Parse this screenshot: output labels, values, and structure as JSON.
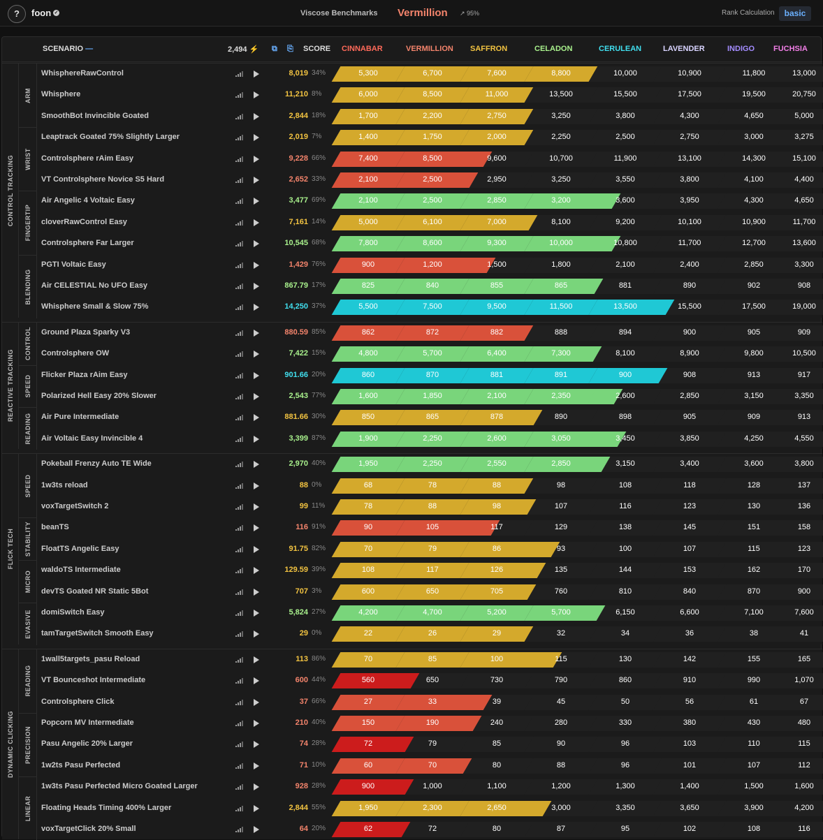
{
  "topbar": {
    "help": "?",
    "username": "foon",
    "benchmark": "Viscose Benchmarks",
    "rank": "Vermillion",
    "rank_color": "#f4846c",
    "pct": "↗ 95%",
    "rank_calc_label": "Rank Calculation",
    "rank_calc_value": "basic"
  },
  "header": {
    "scenario": "SCENARIO",
    "energy": "2,494",
    "score": "SCORE",
    "ranks": [
      {
        "name": "CINNABAR",
        "color": "#ff6a5a"
      },
      {
        "name": "VERMILLION",
        "color": "#f4846c"
      },
      {
        "name": "SAFFRON",
        "color": "#f2c341"
      },
      {
        "name": "CELADON",
        "color": "#a8f08c"
      },
      {
        "name": "CERULEAN",
        "color": "#41dfef"
      },
      {
        "name": "LAVENDER",
        "color": "#d9d4ff"
      },
      {
        "name": "INDIGO",
        "color": "#a48cff"
      },
      {
        "name": "FUCHSIA",
        "color": "#f27fe7"
      }
    ]
  },
  "colors": {
    "red": "#d9513a",
    "brightred": "#cc1c1c",
    "yellow": "#d4a92c",
    "green": "#79d57b",
    "cyan": "#1fc8d5"
  },
  "sections": [
    {
      "name": "CONTROL TRACKING",
      "subs": [
        {
          "name": "ARM",
          "rows": [
            {
              "name": "WhisphereRawControl",
              "score": "8,019",
              "score_color": "#f2c341",
              "pct": "34%",
              "fill": 4,
              "color": "yellow",
              "thresholds": [
                "5,300",
                "6,700",
                "7,600",
                "8,800",
                "10,000",
                "10,900",
                "11,800",
                "13,000"
              ]
            },
            {
              "name": "Whisphere",
              "score": "11,210",
              "score_color": "#f2c341",
              "pct": "8%",
              "fill": 3,
              "color": "yellow",
              "thresholds": [
                "6,000",
                "8,500",
                "11,000",
                "13,500",
                "15,500",
                "17,500",
                "19,500",
                "20,750"
              ]
            },
            {
              "name": "SmoothBot Invincible Goated",
              "score": "2,844",
              "score_color": "#f2c341",
              "pct": "18%",
              "fill": 3,
              "color": "yellow",
              "thresholds": [
                "1,700",
                "2,200",
                "2,750",
                "3,250",
                "3,800",
                "4,300",
                "4,650",
                "5,000"
              ]
            }
          ]
        },
        {
          "name": "WRIST",
          "rows": [
            {
              "name": "Leaptrack Goated 75% Slightly Larger",
              "score": "2,019",
              "score_color": "#f2c341",
              "pct": "7%",
              "fill": 3,
              "color": "yellow",
              "thresholds": [
                "1,400",
                "1,750",
                "2,000",
                "2,250",
                "2,500",
                "2,750",
                "3,000",
                "3,275"
              ]
            },
            {
              "name": "Controlsphere rAim Easy",
              "score": "9,228",
              "score_color": "#f4846c",
              "pct": "66%",
              "fill": 2.7,
              "color": "red",
              "thresholds": [
                "7,400",
                "8,500",
                "9,600",
                "10,700",
                "11,900",
                "13,100",
                "14,300",
                "15,100"
              ]
            },
            {
              "name": "VT Controlsphere Novice S5 Hard",
              "score": "2,652",
              "score_color": "#f4846c",
              "pct": "33%",
              "fill": 2.3,
              "color": "red",
              "thresholds": [
                "2,100",
                "2,500",
                "2,950",
                "3,250",
                "3,550",
                "3,800",
                "4,100",
                "4,400"
              ]
            }
          ]
        },
        {
          "name": "FINGERTIP",
          "rows": [
            {
              "name": "Air Angelic 4 Voltaic Easy",
              "score": "3,477",
              "score_color": "#a8f08c",
              "pct": "69%",
              "fill": 4.7,
              "color": "green",
              "thresholds": [
                "2,100",
                "2,500",
                "2,850",
                "3,200",
                "3,600",
                "3,950",
                "4,300",
                "4,650"
              ]
            },
            {
              "name": "cloverRawControl Easy",
              "score": "7,161",
              "score_color": "#f2c341",
              "pct": "14%",
              "fill": 3.15,
              "color": "yellow",
              "thresholds": [
                "5,000",
                "6,100",
                "7,000",
                "8,100",
                "9,200",
                "10,100",
                "10,900",
                "11,700"
              ]
            },
            {
              "name": "Controlsphere Far Larger",
              "score": "10,545",
              "score_color": "#a8f08c",
              "pct": "68%",
              "fill": 4.7,
              "color": "green",
              "thresholds": [
                "7,800",
                "8,600",
                "9,300",
                "10,000",
                "10,800",
                "11,700",
                "12,700",
                "13,600"
              ]
            }
          ]
        },
        {
          "name": "BLENDING",
          "rows": [
            {
              "name": "PGTI Voltaic Easy",
              "score": "1,429",
              "score_color": "#f4846c",
              "pct": "76%",
              "fill": 2.8,
              "color": "red",
              "thresholds": [
                "900",
                "1,200",
                "1,500",
                "1,800",
                "2,100",
                "2,400",
                "2,850",
                "3,300"
              ]
            },
            {
              "name": "Air CELESTIAL No UFO Easy",
              "score": "867.79",
              "score_color": "#a8f08c",
              "pct": "17%",
              "fill": 4.2,
              "color": "green",
              "thresholds": [
                "825",
                "840",
                "855",
                "865",
                "881",
                "890",
                "902",
                "908"
              ]
            },
            {
              "name": "Whisphere Small & Slow 75%",
              "score": "14,250",
              "score_color": "#41dfef",
              "pct": "37%",
              "fill": 5.4,
              "color": "cyan",
              "thresholds": [
                "5,500",
                "7,500",
                "9,500",
                "11,500",
                "13,500",
                "15,500",
                "17,500",
                "19,000"
              ]
            }
          ]
        }
      ]
    },
    {
      "name": "REACTIVE TRACKING",
      "subs": [
        {
          "name": "CONTROL",
          "rows": [
            {
              "name": "Ground Plaza Sparky V3",
              "score": "880.59",
              "score_color": "#f4846c",
              "pct": "85%",
              "fill": 3,
              "color": "red",
              "thresholds": [
                "862",
                "872",
                "882",
                "888",
                "894",
                "900",
                "905",
                "909"
              ]
            },
            {
              "name": "Controlsphere OW",
              "score": "7,422",
              "score_color": "#a8f08c",
              "pct": "15%",
              "fill": 4.15,
              "color": "green",
              "thresholds": [
                "4,800",
                "5,700",
                "6,400",
                "7,300",
                "8,100",
                "8,900",
                "9,800",
                "10,500"
              ]
            }
          ]
        },
        {
          "name": "SPEED",
          "rows": [
            {
              "name": "Flicker Plaza rAim Easy",
              "score": "901.66",
              "score_color": "#41dfef",
              "pct": "20%",
              "fill": 5.2,
              "color": "cyan",
              "thresholds": [
                "860",
                "870",
                "881",
                "891",
                "900",
                "908",
                "913",
                "917"
              ]
            },
            {
              "name": "Polarized Hell Easy 20% Slower",
              "score": "2,543",
              "score_color": "#a8f08c",
              "pct": "77%",
              "fill": 4.75,
              "color": "green",
              "thresholds": [
                "1,600",
                "1,850",
                "2,100",
                "2,350",
                "2,600",
                "2,850",
                "3,150",
                "3,350"
              ]
            }
          ]
        },
        {
          "name": "READING",
          "rows": [
            {
              "name": "Air Pure Intermediate",
              "score": "881.66",
              "score_color": "#f2c341",
              "pct": "30%",
              "fill": 3.3,
              "color": "yellow",
              "thresholds": [
                "850",
                "865",
                "878",
                "890",
                "898",
                "905",
                "909",
                "913"
              ]
            },
            {
              "name": "Air Voltaic Easy Invincible 4",
              "score": "3,399",
              "score_color": "#a8f08c",
              "pct": "87%",
              "fill": 4.85,
              "color": "green",
              "thresholds": [
                "1,900",
                "2,250",
                "2,600",
                "3,050",
                "3,450",
                "3,850",
                "4,250",
                "4,550"
              ]
            }
          ]
        }
      ]
    },
    {
      "name": "FLICK TECH",
      "subs": [
        {
          "name": "SPEED",
          "rows": [
            {
              "name": "Pokeball Frenzy Auto TE Wide",
              "score": "2,970",
              "score_color": "#a8f08c",
              "pct": "40%",
              "fill": 4.4,
              "color": "green",
              "thresholds": [
                "1,950",
                "2,250",
                "2,550",
                "2,850",
                "3,150",
                "3,400",
                "3,600",
                "3,800"
              ]
            },
            {
              "name": "1w3ts reload",
              "score": "88",
              "score_color": "#f2c341",
              "pct": "0%",
              "fill": 3,
              "color": "yellow",
              "thresholds": [
                "68",
                "78",
                "88",
                "98",
                "108",
                "118",
                "128",
                "137"
              ]
            },
            {
              "name": "voxTargetSwitch 2",
              "score": "99",
              "score_color": "#f2c341",
              "pct": "11%",
              "fill": 3.1,
              "color": "yellow",
              "thresholds": [
                "78",
                "88",
                "98",
                "107",
                "116",
                "123",
                "130",
                "136"
              ]
            }
          ]
        },
        {
          "name": "STABILITY",
          "rows": [
            {
              "name": "beanTS",
              "score": "116",
              "score_color": "#f4846c",
              "pct": "91%",
              "fill": 2.9,
              "color": "red",
              "thresholds": [
                "90",
                "105",
                "117",
                "129",
                "138",
                "145",
                "151",
                "158"
              ]
            },
            {
              "name": "FloatTS Angelic Easy",
              "score": "91.75",
              "score_color": "#f2c341",
              "pct": "82%",
              "fill": 3.8,
              "color": "yellow",
              "thresholds": [
                "70",
                "79",
                "86",
                "93",
                "100",
                "107",
                "115",
                "123"
              ]
            }
          ]
        },
        {
          "name": "MICRO",
          "rows": [
            {
              "name": "waldoTS Intermediate",
              "score": "129.59",
              "score_color": "#f2c341",
              "pct": "39%",
              "fill": 3.4,
              "color": "yellow",
              "thresholds": [
                "108",
                "117",
                "126",
                "135",
                "144",
                "153",
                "162",
                "170"
              ]
            },
            {
              "name": "devTS Goated NR Static 5Bot",
              "score": "707",
              "score_color": "#f2c341",
              "pct": "3%",
              "fill": 3.05,
              "color": "yellow",
              "thresholds": [
                "600",
                "650",
                "705",
                "760",
                "810",
                "840",
                "870",
                "900"
              ]
            }
          ]
        },
        {
          "name": "EVASIVE",
          "rows": [
            {
              "name": "domiSwitch Easy",
              "score": "5,824",
              "score_color": "#a8f08c",
              "pct": "27%",
              "fill": 4.25,
              "color": "green",
              "thresholds": [
                "4,200",
                "4,700",
                "5,200",
                "5,700",
                "6,150",
                "6,600",
                "7,100",
                "7,600"
              ]
            },
            {
              "name": "tamTargetSwitch Smooth Easy",
              "score": "29",
              "score_color": "#f2c341",
              "pct": "0%",
              "fill": 3,
              "color": "yellow",
              "thresholds": [
                "22",
                "26",
                "29",
                "32",
                "34",
                "36",
                "38",
                "41"
              ]
            }
          ]
        }
      ]
    },
    {
      "name": "DYNAMIC CLICKING",
      "subs": [
        {
          "name": "READING",
          "rows": [
            {
              "name": "1wall5targets_pasu Reload",
              "score": "113",
              "score_color": "#f2c341",
              "pct": "86%",
              "fill": 3.85,
              "color": "yellow",
              "thresholds": [
                "70",
                "85",
                "100",
                "115",
                "130",
                "142",
                "155",
                "165"
              ]
            },
            {
              "name": "VT Bounceshot Intermediate",
              "score": "600",
              "score_color": "#f4846c",
              "pct": "44%",
              "fill": 1.45,
              "color": "brightred",
              "thresholds": [
                "560",
                "650",
                "730",
                "790",
                "860",
                "910",
                "990",
                "1,070"
              ]
            },
            {
              "name": "Controlsphere Click",
              "score": "37",
              "score_color": "#f4846c",
              "pct": "66%",
              "fill": 2.7,
              "color": "red",
              "thresholds": [
                "27",
                "33",
                "39",
                "45",
                "50",
                "56",
                "61",
                "67"
              ]
            }
          ]
        },
        {
          "name": "PRECISION",
          "rows": [
            {
              "name": "Popcorn MV Intermediate",
              "score": "210",
              "score_color": "#f4846c",
              "pct": "40%",
              "fill": 2.4,
              "color": "red",
              "thresholds": [
                "150",
                "190",
                "240",
                "280",
                "330",
                "380",
                "430",
                "480"
              ]
            },
            {
              "name": "Pasu Angelic 20% Larger",
              "score": "74",
              "score_color": "#f4846c",
              "pct": "28%",
              "fill": 1.3,
              "color": "brightred",
              "thresholds": [
                "72",
                "79",
                "85",
                "90",
                "96",
                "103",
                "110",
                "115"
              ]
            },
            {
              "name": "1w2ts Pasu Perfected",
              "score": "71",
              "score_color": "#f4846c",
              "pct": "10%",
              "fill": 2.1,
              "color": "red",
              "thresholds": [
                "60",
                "70",
                "80",
                "88",
                "96",
                "101",
                "107",
                "112"
              ]
            }
          ]
        },
        {
          "name": "LINEAR",
          "rows": [
            {
              "name": "1w3ts Pasu Perfected Micro Goated Larger",
              "score": "928",
              "score_color": "#f4846c",
              "pct": "28%",
              "fill": 1.3,
              "color": "brightred",
              "thresholds": [
                "900",
                "1,000",
                "1,100",
                "1,200",
                "1,300",
                "1,400",
                "1,500",
                "1,600"
              ]
            },
            {
              "name": "Floating Heads Timing 400% Larger",
              "score": "2,844",
              "score_color": "#f2c341",
              "pct": "55%",
              "fill": 3.55,
              "color": "yellow",
              "thresholds": [
                "1,950",
                "2,300",
                "2,650",
                "3,000",
                "3,350",
                "3,650",
                "3,900",
                "4,200"
              ]
            },
            {
              "name": "voxTargetClick 20% Small",
              "score": "64",
              "score_color": "#f4846c",
              "pct": "20%",
              "fill": 1.2,
              "color": "brightred",
              "thresholds": [
                "62",
                "72",
                "80",
                "87",
                "95",
                "102",
                "108",
                "116"
              ]
            }
          ]
        }
      ]
    }
  ]
}
